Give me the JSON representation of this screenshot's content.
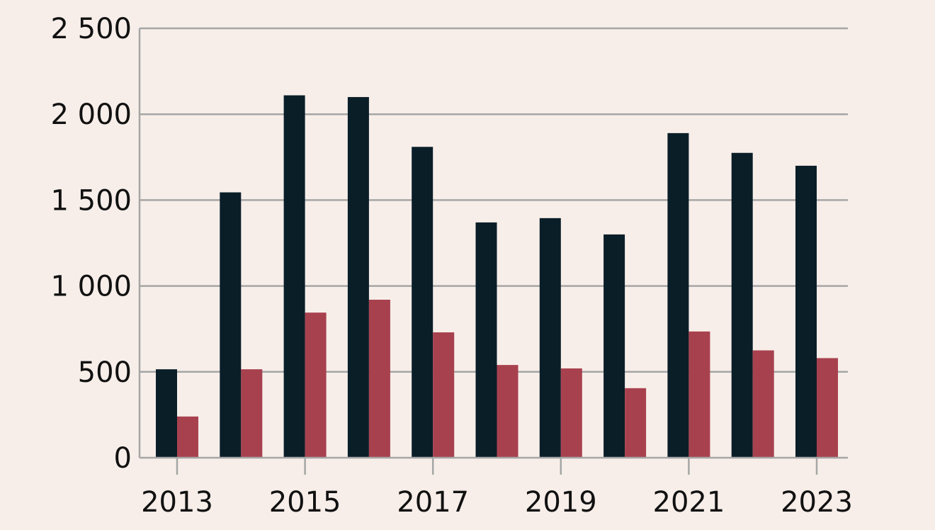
{
  "chart_data": {
    "type": "bar",
    "title": "",
    "xlabel": "",
    "ylabel": "",
    "categories": [
      "2013",
      "2014",
      "2015",
      "2016",
      "2017",
      "2018",
      "2019",
      "2020",
      "2021",
      "2022",
      "2023"
    ],
    "x_tick_labels": [
      "2013",
      "2015",
      "2017",
      "2019",
      "2021",
      "2023"
    ],
    "y_ticks": [
      0,
      500,
      1000,
      1500,
      2000,
      2500
    ],
    "y_tick_labels": [
      "0",
      "500",
      "1 000",
      "1 500",
      "2 000",
      "2 500"
    ],
    "ylim": [
      0,
      2500
    ],
    "grid": true,
    "series": [
      {
        "color": "#0a1e28",
        "values": [
          515,
          1545,
          2110,
          2100,
          1810,
          1370,
          1395,
          1300,
          1890,
          1775,
          1700
        ]
      },
      {
        "color": "#a8414e",
        "values": [
          240,
          515,
          845,
          920,
          730,
          540,
          520,
          405,
          735,
          625,
          580
        ]
      }
    ]
  }
}
